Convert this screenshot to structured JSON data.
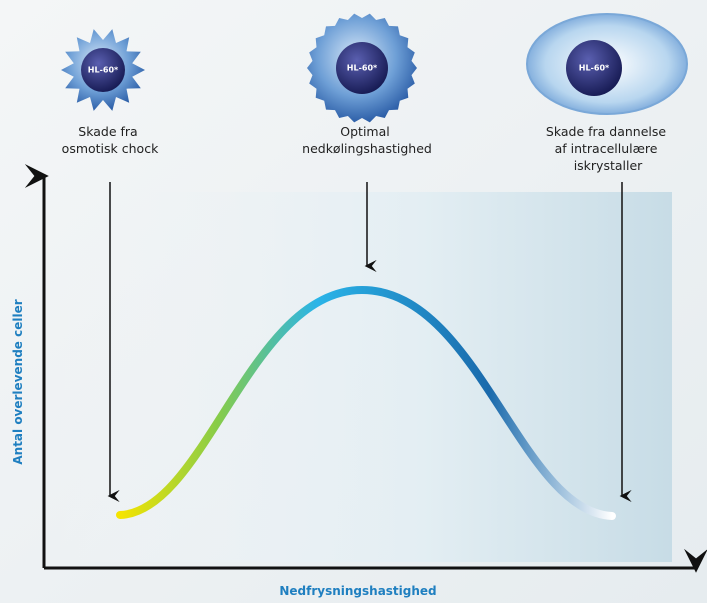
{
  "cells": [
    {
      "label": "HL-60*",
      "caption": [
        "Skade fra",
        "osmotisk chock"
      ]
    },
    {
      "label": "HL-60*",
      "caption": [
        "Optimal",
        "nedkølingshastighed"
      ]
    },
    {
      "label": "HL-60*",
      "caption": [
        "Skade fra dannelse",
        "af intracellulære",
        "iskrystaller"
      ]
    }
  ],
  "axes": {
    "y_label": "Antal overlevende celler",
    "x_label": "Nedfrysningshastighed"
  }
}
